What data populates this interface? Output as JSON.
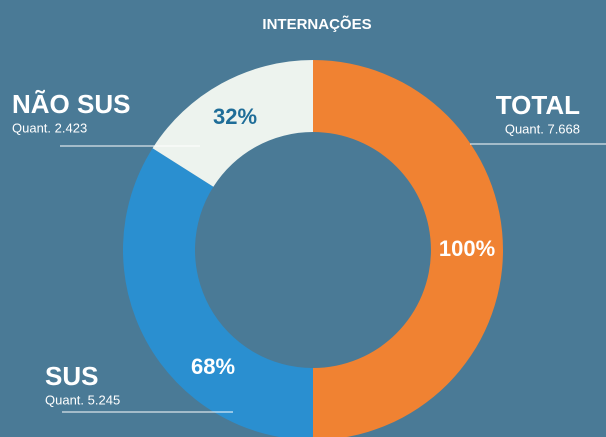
{
  "chart_data": {
    "type": "donut",
    "title": "INTERNAÇÕES",
    "total": {
      "name": "TOTAL",
      "value": 100,
      "value_label": "100%",
      "quantity": "Quant. 7.668",
      "color": "#f08232"
    },
    "series": [
      {
        "name": "SUS",
        "value": 68,
        "value_label": "68%",
        "quantity": "Quant. 5.245",
        "color": "#2a8fd0"
      },
      {
        "name": "NÃO SUS",
        "value": 32,
        "value_label": "32%",
        "quantity": "Quant. 2.423",
        "color": "#edf3ee"
      }
    ]
  }
}
